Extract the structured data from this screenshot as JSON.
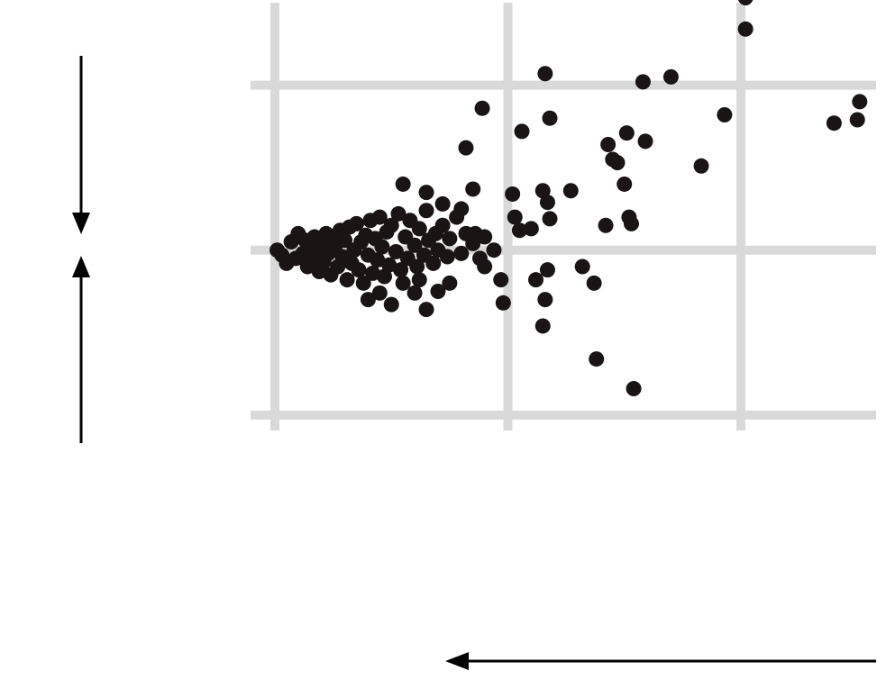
{
  "colors": {
    "point": "#1a1414",
    "grid": "#d9d9d9",
    "background": "#ffffff",
    "arrow": "#000000"
  },
  "chart_data": {
    "type": "scatter",
    "title": "",
    "xlabel": "",
    "ylabel": "",
    "xlim": [
      0,
      2.65
    ],
    "ylim": [
      -1.05,
      1.5
    ],
    "xticks": [
      0,
      1,
      2
    ],
    "yticks": [
      -1,
      0,
      1
    ],
    "grid": true,
    "legend": "none",
    "annotations": [
      {
        "type": "arrow",
        "direction": "down"
      },
      {
        "type": "arrow",
        "direction": "up"
      },
      {
        "type": "arrow",
        "direction": "left"
      }
    ],
    "points": [
      [
        0.01,
        0.0
      ],
      [
        0.03,
        -0.03
      ],
      [
        0.05,
        -0.08
      ],
      [
        0.07,
        0.05
      ],
      [
        0.09,
        -0.05
      ],
      [
        0.1,
        0.1
      ],
      [
        0.12,
        -0.02
      ],
      [
        0.13,
        0.06
      ],
      [
        0.14,
        -0.1
      ],
      [
        0.15,
        0.02
      ],
      [
        0.16,
        -0.05
      ],
      [
        0.17,
        0.08
      ],
      [
        0.18,
        0.0
      ],
      [
        0.19,
        -0.13
      ],
      [
        0.2,
        0.05
      ],
      [
        0.21,
        -0.07
      ],
      [
        0.22,
        0.1
      ],
      [
        0.23,
        -0.02
      ],
      [
        0.24,
        -0.15
      ],
      [
        0.25,
        0.08
      ],
      [
        0.26,
        0.03
      ],
      [
        0.27,
        -0.1
      ],
      [
        0.28,
        0.12
      ],
      [
        0.29,
        -0.04
      ],
      [
        0.3,
        0.06
      ],
      [
        0.31,
        -0.18
      ],
      [
        0.32,
        0.14
      ],
      [
        0.33,
        -0.08
      ],
      [
        0.34,
        0.0
      ],
      [
        0.35,
        0.16
      ],
      [
        0.36,
        -0.12
      ],
      [
        0.37,
        0.05
      ],
      [
        0.38,
        -0.2
      ],
      [
        0.39,
        0.09
      ],
      [
        0.4,
        -0.03
      ],
      [
        0.41,
        0.18
      ],
      [
        0.42,
        -0.14
      ],
      [
        0.43,
        0.07
      ],
      [
        0.44,
        -0.06
      ],
      [
        0.45,
        0.2
      ],
      [
        0.46,
        0.02
      ],
      [
        0.47,
        -0.16
      ],
      [
        0.48,
        0.11
      ],
      [
        0.49,
        -0.09
      ],
      [
        0.5,
        0.15
      ],
      [
        0.52,
        -0.01
      ],
      [
        0.53,
        0.22
      ],
      [
        0.54,
        -0.12
      ],
      [
        0.56,
        0.08
      ],
      [
        0.57,
        -0.05
      ],
      [
        0.58,
        0.18
      ],
      [
        0.6,
        0.03
      ],
      [
        0.61,
        -0.1
      ],
      [
        0.62,
        0.13
      ],
      [
        0.64,
        -0.03
      ],
      [
        0.65,
        0.24
      ],
      [
        0.66,
        0.06
      ],
      [
        0.68,
        -0.08
      ],
      [
        0.69,
        0.1
      ],
      [
        0.7,
        0.0
      ],
      [
        0.72,
        0.15
      ],
      [
        0.74,
        -0.04
      ],
      [
        0.75,
        0.07
      ],
      [
        0.78,
        0.2
      ],
      [
        0.8,
        -0.02
      ],
      [
        0.82,
        0.1
      ],
      [
        0.85,
        0.04
      ],
      [
        0.88,
        -0.05
      ],
      [
        0.9,
        0.08
      ],
      [
        0.4,
        -0.3
      ],
      [
        0.45,
        -0.26
      ],
      [
        0.5,
        -0.33
      ],
      [
        0.55,
        -0.2
      ],
      [
        0.6,
        -0.26
      ],
      [
        0.62,
        -0.18
      ],
      [
        0.65,
        -0.36
      ],
      [
        0.7,
        -0.25
      ],
      [
        0.75,
        -0.2
      ],
      [
        0.55,
        0.4
      ],
      [
        0.65,
        0.35
      ],
      [
        0.72,
        0.28
      ],
      [
        0.8,
        0.25
      ],
      [
        0.86,
        0.1
      ],
      [
        0.9,
        -0.1
      ],
      [
        0.85,
        0.37
      ],
      [
        0.82,
        0.62
      ],
      [
        0.89,
        0.86
      ],
      [
        0.94,
        0.0
      ],
      [
        0.97,
        -0.18
      ],
      [
        0.98,
        -0.32
      ],
      [
        1.02,
        0.34
      ],
      [
        1.03,
        0.2
      ],
      [
        1.05,
        0.12
      ],
      [
        1.06,
        0.72
      ],
      [
        1.1,
        0.13
      ],
      [
        1.12,
        -0.18
      ],
      [
        1.15,
        0.36
      ],
      [
        1.17,
        0.29
      ],
      [
        1.18,
        0.19
      ],
      [
        1.17,
        -0.12
      ],
      [
        1.16,
        -0.3
      ],
      [
        1.15,
        -0.46
      ],
      [
        1.16,
        1.07
      ],
      [
        1.18,
        0.8
      ],
      [
        1.27,
        0.36
      ],
      [
        1.32,
        -0.1
      ],
      [
        1.37,
        -0.2
      ],
      [
        1.38,
        -0.66
      ],
      [
        1.42,
        0.15
      ],
      [
        1.43,
        0.64
      ],
      [
        1.45,
        0.55
      ],
      [
        1.47,
        0.53
      ],
      [
        1.51,
        0.71
      ],
      [
        1.5,
        0.4
      ],
      [
        1.52,
        0.2
      ],
      [
        1.53,
        0.16
      ],
      [
        1.54,
        -0.84
      ],
      [
        1.58,
        1.02
      ],
      [
        1.59,
        0.66
      ],
      [
        1.7,
        1.05
      ],
      [
        1.83,
        0.51
      ],
      [
        1.93,
        0.82
      ],
      [
        2.02,
        1.34
      ],
      [
        2.02,
        1.53
      ],
      [
        2.4,
        0.77
      ],
      [
        2.5,
        0.79
      ],
      [
        2.51,
        0.9
      ]
    ]
  }
}
